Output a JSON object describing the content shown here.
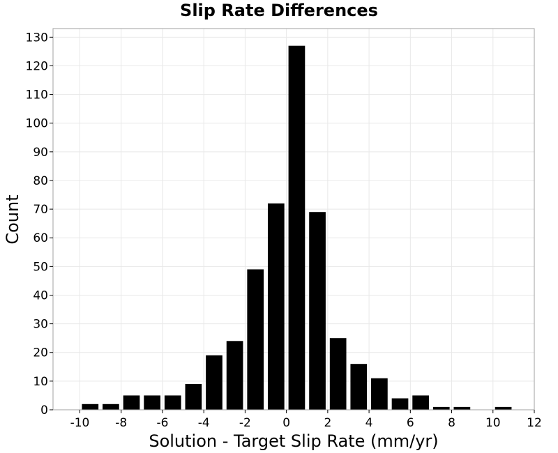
{
  "chart_data": {
    "type": "bar",
    "title": "Slip Rate Differences",
    "xlabel": "Solution - Target Slip Rate (mm/yr)",
    "ylabel": "Count",
    "xlim": [
      -11.3,
      12
    ],
    "ylim": [
      0,
      133
    ],
    "xticks": [
      -10,
      -8,
      -6,
      -4,
      -2,
      0,
      2,
      4,
      6,
      8,
      10,
      12
    ],
    "yticks": [
      0,
      10,
      20,
      30,
      40,
      50,
      60,
      70,
      80,
      90,
      100,
      110,
      120,
      130
    ],
    "grid": true,
    "bin_width": 1,
    "bin_centers": [
      -9.5,
      -8.5,
      -7.5,
      -6.5,
      -5.5,
      -4.5,
      -3.5,
      -2.5,
      -1.5,
      -0.5,
      0.5,
      1.5,
      2.5,
      3.5,
      4.5,
      5.5,
      6.5,
      7.5,
      8.5,
      9.5,
      10.5
    ],
    "values": [
      2,
      2,
      5,
      5,
      5,
      9,
      19,
      24,
      49,
      72,
      127,
      69,
      25,
      16,
      11,
      4,
      5,
      1,
      1,
      0,
      1
    ],
    "bar_color": "#000000"
  }
}
